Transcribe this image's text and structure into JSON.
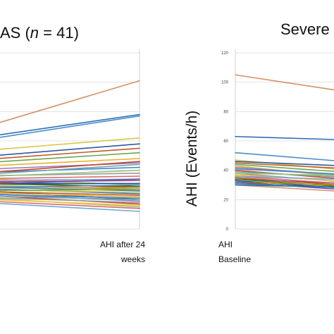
{
  "chart_data": [
    {
      "type": "line",
      "title_prefix": "AS (",
      "title_var": "n",
      "title_suffix": " = 41)",
      "categories": [
        "AHI Baseline",
        "AHI after 24 weeks"
      ],
      "xcat_right_lines": [
        "AHI after 24",
        "weeks"
      ],
      "ylim": [
        0,
        120
      ],
      "series_values": [
        [
          64,
          101
        ],
        [
          60,
          78
        ],
        [
          58,
          77
        ],
        [
          52,
          62
        ],
        [
          48,
          58
        ],
        [
          46,
          55
        ],
        [
          44,
          52
        ],
        [
          42,
          48
        ],
        [
          40,
          45
        ],
        [
          38,
          42
        ],
        [
          37,
          46
        ],
        [
          36,
          44
        ],
        [
          36,
          38
        ],
        [
          35,
          40
        ],
        [
          35,
          30
        ],
        [
          34,
          36
        ],
        [
          33,
          34
        ],
        [
          33,
          28
        ],
        [
          32,
          33
        ],
        [
          31,
          29
        ],
        [
          31,
          31
        ],
        [
          30,
          27
        ],
        [
          30,
          34
        ],
        [
          29,
          26
        ],
        [
          29,
          28
        ],
        [
          28,
          24
        ],
        [
          28,
          30
        ],
        [
          27,
          25
        ],
        [
          27,
          20
        ],
        [
          26,
          23
        ],
        [
          26,
          27
        ],
        [
          25,
          22
        ],
        [
          25,
          19
        ],
        [
          24,
          21
        ],
        [
          24,
          17
        ],
        [
          23,
          20
        ],
        [
          22,
          18
        ],
        [
          22,
          15
        ],
        [
          21,
          16
        ],
        [
          20,
          14
        ],
        [
          19,
          12
        ]
      ]
    },
    {
      "type": "line",
      "title": "Severe",
      "ylabel": "AHI (Events/h)",
      "categories": [
        "AHI Baseline",
        "AHI after 24 weeks"
      ],
      "xcat_left_lines": [
        "AHI",
        "Baseline"
      ],
      "ylim": [
        0,
        120
      ],
      "yticks": [
        "0",
        "20",
        "40",
        "60",
        "80",
        "100",
        "120"
      ],
      "series_values": [
        [
          105,
          90
        ],
        [
          63,
          60
        ],
        [
          52,
          44
        ],
        [
          47,
          38
        ],
        [
          46,
          42
        ],
        [
          45,
          40
        ],
        [
          44,
          37
        ],
        [
          43,
          33
        ],
        [
          42,
          35
        ],
        [
          41,
          36
        ],
        [
          40,
          32
        ],
        [
          39,
          34
        ],
        [
          38,
          30
        ],
        [
          38,
          36
        ],
        [
          37,
          31
        ],
        [
          36,
          29
        ],
        [
          36,
          33
        ],
        [
          35,
          28
        ],
        [
          34,
          30
        ],
        [
          34,
          27
        ],
        [
          33,
          26
        ],
        [
          32,
          29
        ],
        [
          32,
          25
        ],
        [
          31,
          27
        ],
        [
          30,
          24
        ],
        [
          30,
          28
        ]
      ]
    }
  ],
  "colors": [
    "#d4926a",
    "#2f6db5",
    "#4a8cc9",
    "#d9c84a",
    "#2d5a9e",
    "#c25b28",
    "#6aa84f",
    "#e8b22c",
    "#8e7cc3",
    "#3d85c6",
    "#cc4125",
    "#76a5af",
    "#999999",
    "#93c47d",
    "#f1c232",
    "#e06666",
    "#6fa8dc",
    "#b45f06",
    "#a64d79",
    "#38761d",
    "#0b5394",
    "#bf9000",
    "#674ea7",
    "#45818e"
  ]
}
